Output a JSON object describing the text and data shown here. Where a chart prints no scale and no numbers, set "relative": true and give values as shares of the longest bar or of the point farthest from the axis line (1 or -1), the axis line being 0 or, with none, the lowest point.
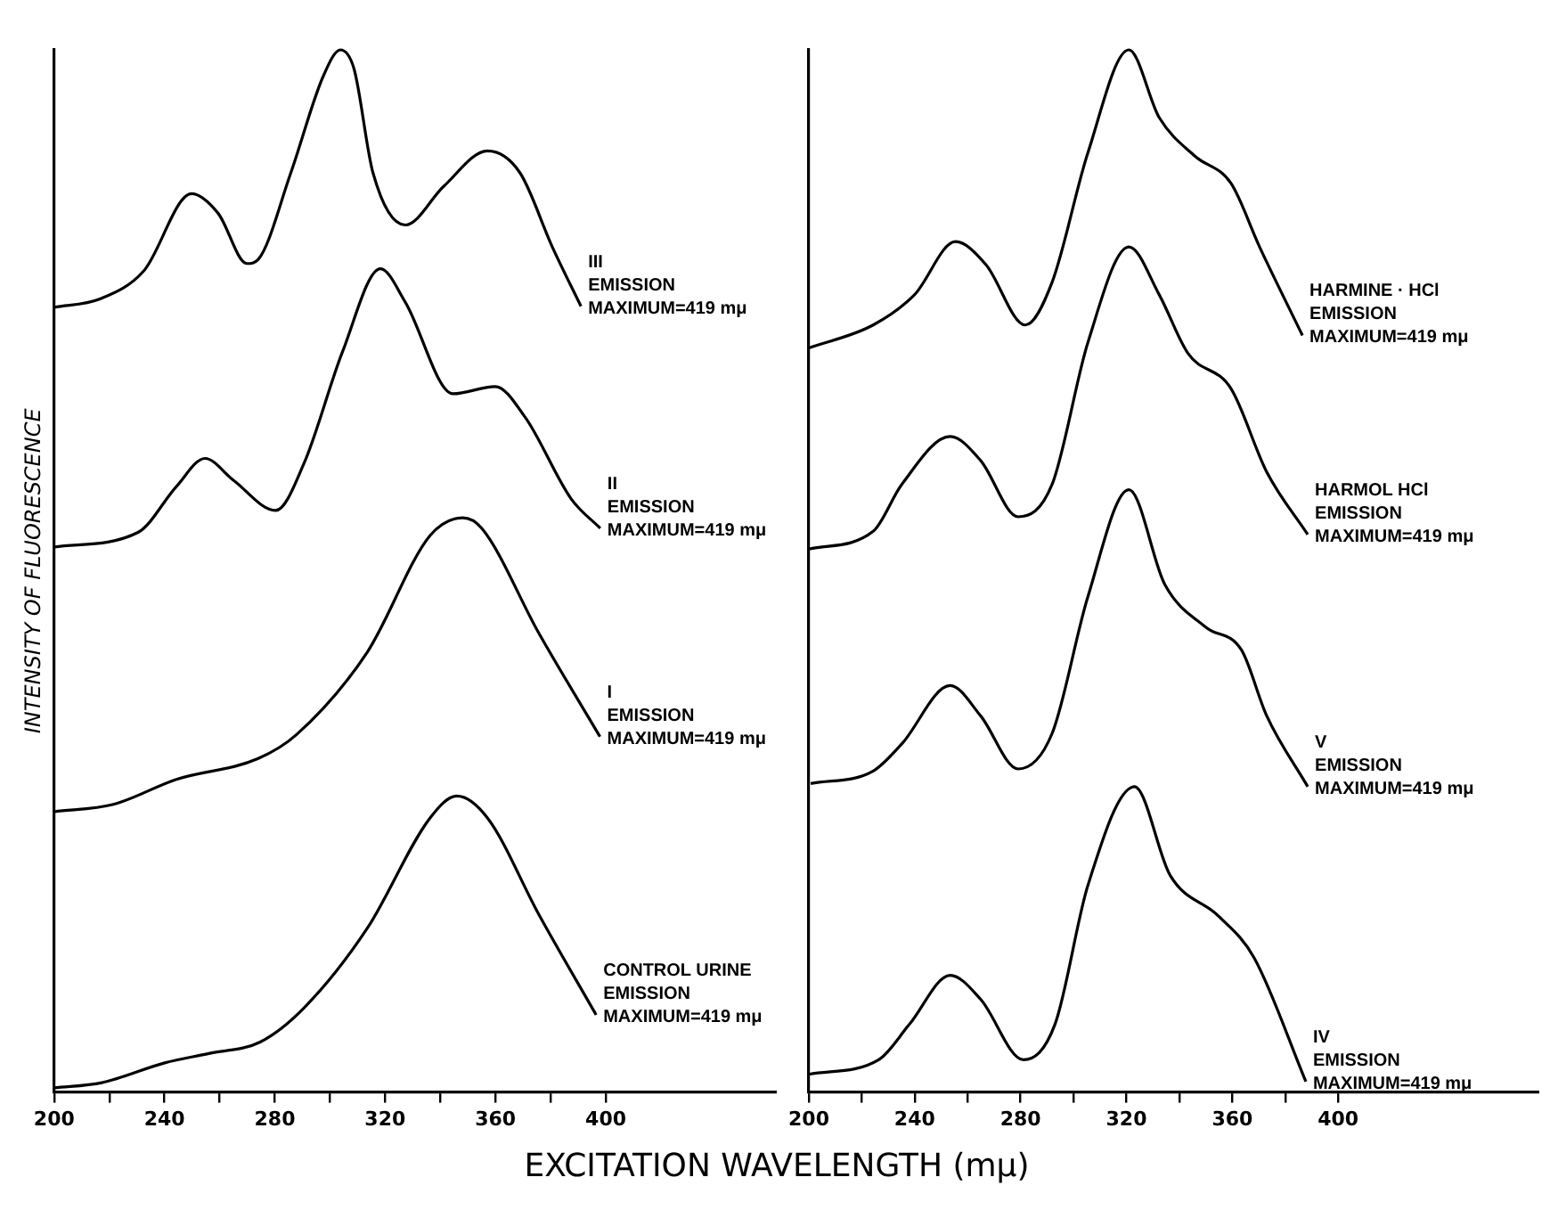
{
  "chart_data": [
    {
      "type": "line",
      "relative": true,
      "legend": false,
      "grid": false,
      "marker": "none",
      "line_style": "solid",
      "ylabel": "INTENSITY OF FLUORESCENCE",
      "xlabel": "EXCITATION WAVELENGTH (mμ)",
      "xlim": [
        200,
        462
      ],
      "xticks": [
        200,
        {
          "value": 220,
          "label": null
        },
        240,
        {
          "value": 260,
          "label": null
        },
        280,
        {
          "value": 300,
          "label": null
        },
        320,
        {
          "value": 340,
          "label": null
        },
        360,
        {
          "value": 380,
          "label": null
        },
        400
      ],
      "series": [
        {
          "name": "III\nEMISSION\nMAXIMUM=419 mμ",
          "color": "#000000",
          "x": [
            200,
            216.6,
            232.5,
            249.8,
            259.5,
            269.9,
            274,
            285.8,
            297.6,
            303.8,
            308.7,
            315.6,
            327.3,
            341.2,
            357.1,
            368.9,
            380.6,
            391
          ],
          "values": [
            0.753,
            0.761,
            0.788,
            0.862,
            0.843,
            0.795,
            0.799,
            0.882,
            0.975,
            1,
            0.982,
            0.882,
            0.832,
            0.869,
            0.903,
            0.882,
            0.811,
            0.754
          ]
        },
        {
          "name": "II\nEMISSION\nMAXIMUM=419 mμ",
          "color": "#000000",
          "x": [
            200,
            230.4,
            244.3,
            254.7,
            265,
            280.3,
            290.7,
            304.5,
            318.3,
            327.3,
            344.6,
            359.9,
            370.9,
            387.5,
            398
          ],
          "values": [
            0.523,
            0.537,
            0.581,
            0.608,
            0.587,
            0.558,
            0.604,
            0.71,
            0.79,
            0.758,
            0.67,
            0.677,
            0.647,
            0.569,
            0.541
          ]
        },
        {
          "name": "I\nEMISSION\nMAXIMUM=419 mμ",
          "color": "#000000",
          "x": [
            200,
            221.5,
            244.3,
            274,
            287.9,
            313.5,
            336.3,
            348.1,
            355,
            375.8,
            397.9
          ],
          "values": [
            0.269,
            0.276,
            0.3,
            0.32,
            0.343,
            0.422,
            0.534,
            0.551,
            0.541,
            0.44,
            0.341
          ]
        },
        {
          "name": "CONTROL URINE\nEMISSION\nMAXIMUM=419 mμ",
          "color": "#000000",
          "x": [
            200,
            217.3,
            240.1,
            256.1,
            274.7,
            290.7,
            313.5,
            336.3,
            346,
            357.1,
            375.8,
            396.5
          ],
          "values": [
            0.004,
            0.009,
            0.028,
            0.037,
            0.048,
            0.081,
            0.157,
            0.263,
            0.284,
            0.263,
            0.17,
            0.074
          ]
        }
      ]
    },
    {
      "type": "line",
      "relative": true,
      "legend": false,
      "grid": false,
      "marker": "none",
      "line_style": "solid",
      "xlim": [
        200,
        476
      ],
      "xticks": [
        200,
        {
          "value": 220,
          "label": null
        },
        240,
        {
          "value": 260,
          "label": null
        },
        280,
        {
          "value": 300,
          "label": null
        },
        320,
        {
          "value": 340,
          "label": null
        },
        360,
        {
          "value": 380,
          "label": null
        },
        400
      ],
      "series": [
        {
          "name": "HARMINE · HCl\nEMISSION\nMAXIMUM=419 mμ",
          "color": "#000000",
          "x": [
            200,
            224.3,
            239.9,
            255.4,
            266.9,
            281.8,
            291.9,
            305.4,
            320.9,
            332.4,
            345.9,
            359.5,
            370.3,
            386.5
          ],
          "values": [
            0.714,
            0.736,
            0.765,
            0.816,
            0.794,
            0.736,
            0.777,
            0.901,
            1,
            0.935,
            0.898,
            0.872,
            0.811,
            0.726
          ]
        },
        {
          "name": "HARMOL HCl\nEMISSION\nMAXIMUM=419 mμ",
          "color": "#000000",
          "x": [
            200,
            224.3,
            235.1,
            253.4,
            264.9,
            279.1,
            291.9,
            305.4,
            320.9,
            332.4,
            343.2,
            359.5,
            373,
            388.5
          ],
          "values": [
            0.521,
            0.538,
            0.583,
            0.629,
            0.606,
            0.552,
            0.583,
            0.719,
            0.811,
            0.765,
            0.709,
            0.675,
            0.595,
            0.535
          ]
        },
        {
          "name": "V\nEMISSION\nMAXIMUM=419 mμ",
          "color": "#000000",
          "x": [
            200.7,
            224.3,
            235.1,
            253.4,
            264.9,
            279.1,
            291.9,
            305.4,
            320.9,
            334.5,
            350,
            363.5,
            373,
            388.5
          ],
          "values": [
            0.296,
            0.308,
            0.334,
            0.39,
            0.361,
            0.31,
            0.344,
            0.475,
            0.578,
            0.487,
            0.446,
            0.424,
            0.361,
            0.293
          ]
        },
        {
          "name": "IV\nEMISSION\nMAXIMUM=419 mμ",
          "color": "#000000",
          "x": [
            200,
            226.4,
            238,
            253.4,
            264.9,
            281.1,
            293,
            305.4,
            323,
            336.5,
            354.7,
            368.2,
            387.8
          ],
          "values": [
            0.017,
            0.031,
            0.065,
            0.112,
            0.089,
            0.031,
            0.065,
            0.198,
            0.293,
            0.208,
            0.169,
            0.129,
            0.01
          ]
        }
      ]
    }
  ]
}
